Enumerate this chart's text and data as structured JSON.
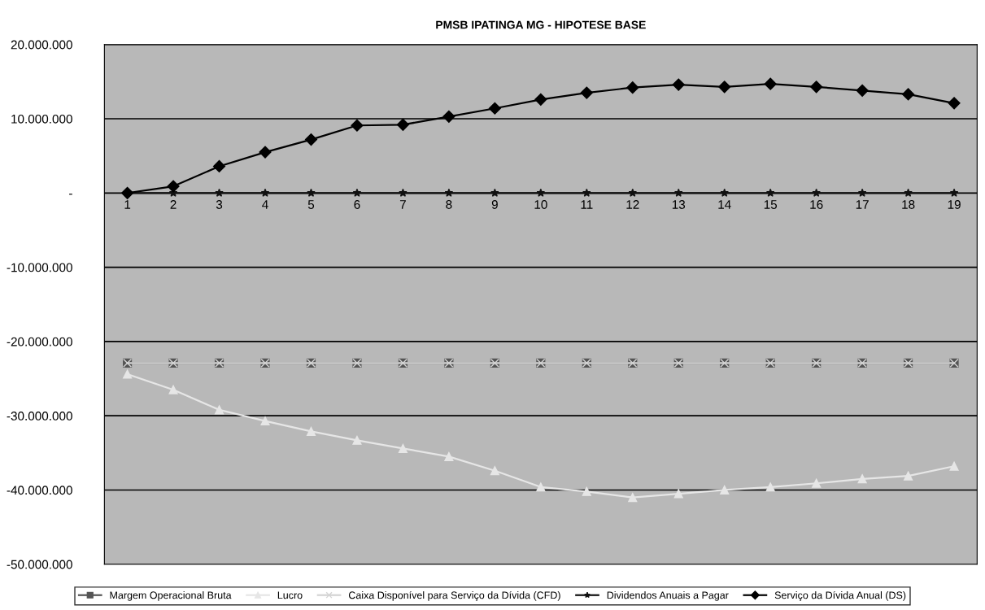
{
  "chart_data": {
    "type": "line",
    "title": "PMSB IPATINGA MG - HIPOTESE BASE",
    "categories": [
      "1",
      "2",
      "3",
      "4",
      "5",
      "6",
      "7",
      "8",
      "9",
      "10",
      "11",
      "12",
      "13",
      "14",
      "15",
      "16",
      "17",
      "18",
      "19"
    ],
    "series": [
      {
        "name": "Margem Operacional Bruta",
        "color": "#555555",
        "marker": "square",
        "values": [
          -22900000,
          -22900000,
          -22900000,
          -22900000,
          -22900000,
          -22900000,
          -22900000,
          -22900000,
          -22900000,
          -22900000,
          -22900000,
          -22900000,
          -22900000,
          -22900000,
          -22900000,
          -22900000,
          -22900000,
          -22900000,
          -22900000
        ]
      },
      {
        "name": "Lucro",
        "color": "#e6e6e6",
        "marker": "triangle",
        "values": [
          -24400000,
          -26500000,
          -29200000,
          -30700000,
          -32100000,
          -33300000,
          -34400000,
          -35500000,
          -37400000,
          -39600000,
          -40200000,
          -41000000,
          -40500000,
          -40000000,
          -39600000,
          -39100000,
          -38500000,
          -38100000,
          -36800000
        ]
      },
      {
        "name": "Caixa Disponível para Serviço da Dívida (CFD)",
        "color": "#d4d4d4",
        "marker": "cross",
        "values": [
          -22900000,
          -22900000,
          -22900000,
          -22900000,
          -22900000,
          -22900000,
          -22900000,
          -22900000,
          -22900000,
          -22900000,
          -22900000,
          -22900000,
          -22900000,
          -22900000,
          -22900000,
          -22900000,
          -22900000,
          -22900000,
          -22900000
        ]
      },
      {
        "name": "Dividendos Anuais a Pagar",
        "color": "#111111",
        "marker": "star",
        "values": [
          0,
          0,
          0,
          0,
          0,
          0,
          0,
          0,
          0,
          0,
          0,
          0,
          0,
          0,
          0,
          0,
          0,
          0,
          0
        ]
      },
      {
        "name": "Serviço da Dívida Anual (DS)",
        "color": "#000000",
        "marker": "diamond",
        "values": [
          0,
          900000,
          3600000,
          5500000,
          7200000,
          9100000,
          9200000,
          10300000,
          11400000,
          12600000,
          13500000,
          14200000,
          14600000,
          14300000,
          14700000,
          14300000,
          13800000,
          13300000,
          12100000
        ]
      }
    ],
    "ylim": [
      -50000000,
      20000000
    ],
    "yticks": [
      {
        "value": -50000000,
        "label": "-50.000.000"
      },
      {
        "value": -40000000,
        "label": "-40.000.000"
      },
      {
        "value": -30000000,
        "label": "-30.000.000"
      },
      {
        "value": -20000000,
        "label": "-20.000.000"
      },
      {
        "value": -10000000,
        "label": "-10.000.000"
      },
      {
        "value": 0,
        "label": "-"
      },
      {
        "value": 10000000,
        "label": "10.000.000"
      },
      {
        "value": 20000000,
        "label": "20.000.000"
      }
    ],
    "grid": "y",
    "legend": "bottom",
    "line_style": "solid"
  }
}
